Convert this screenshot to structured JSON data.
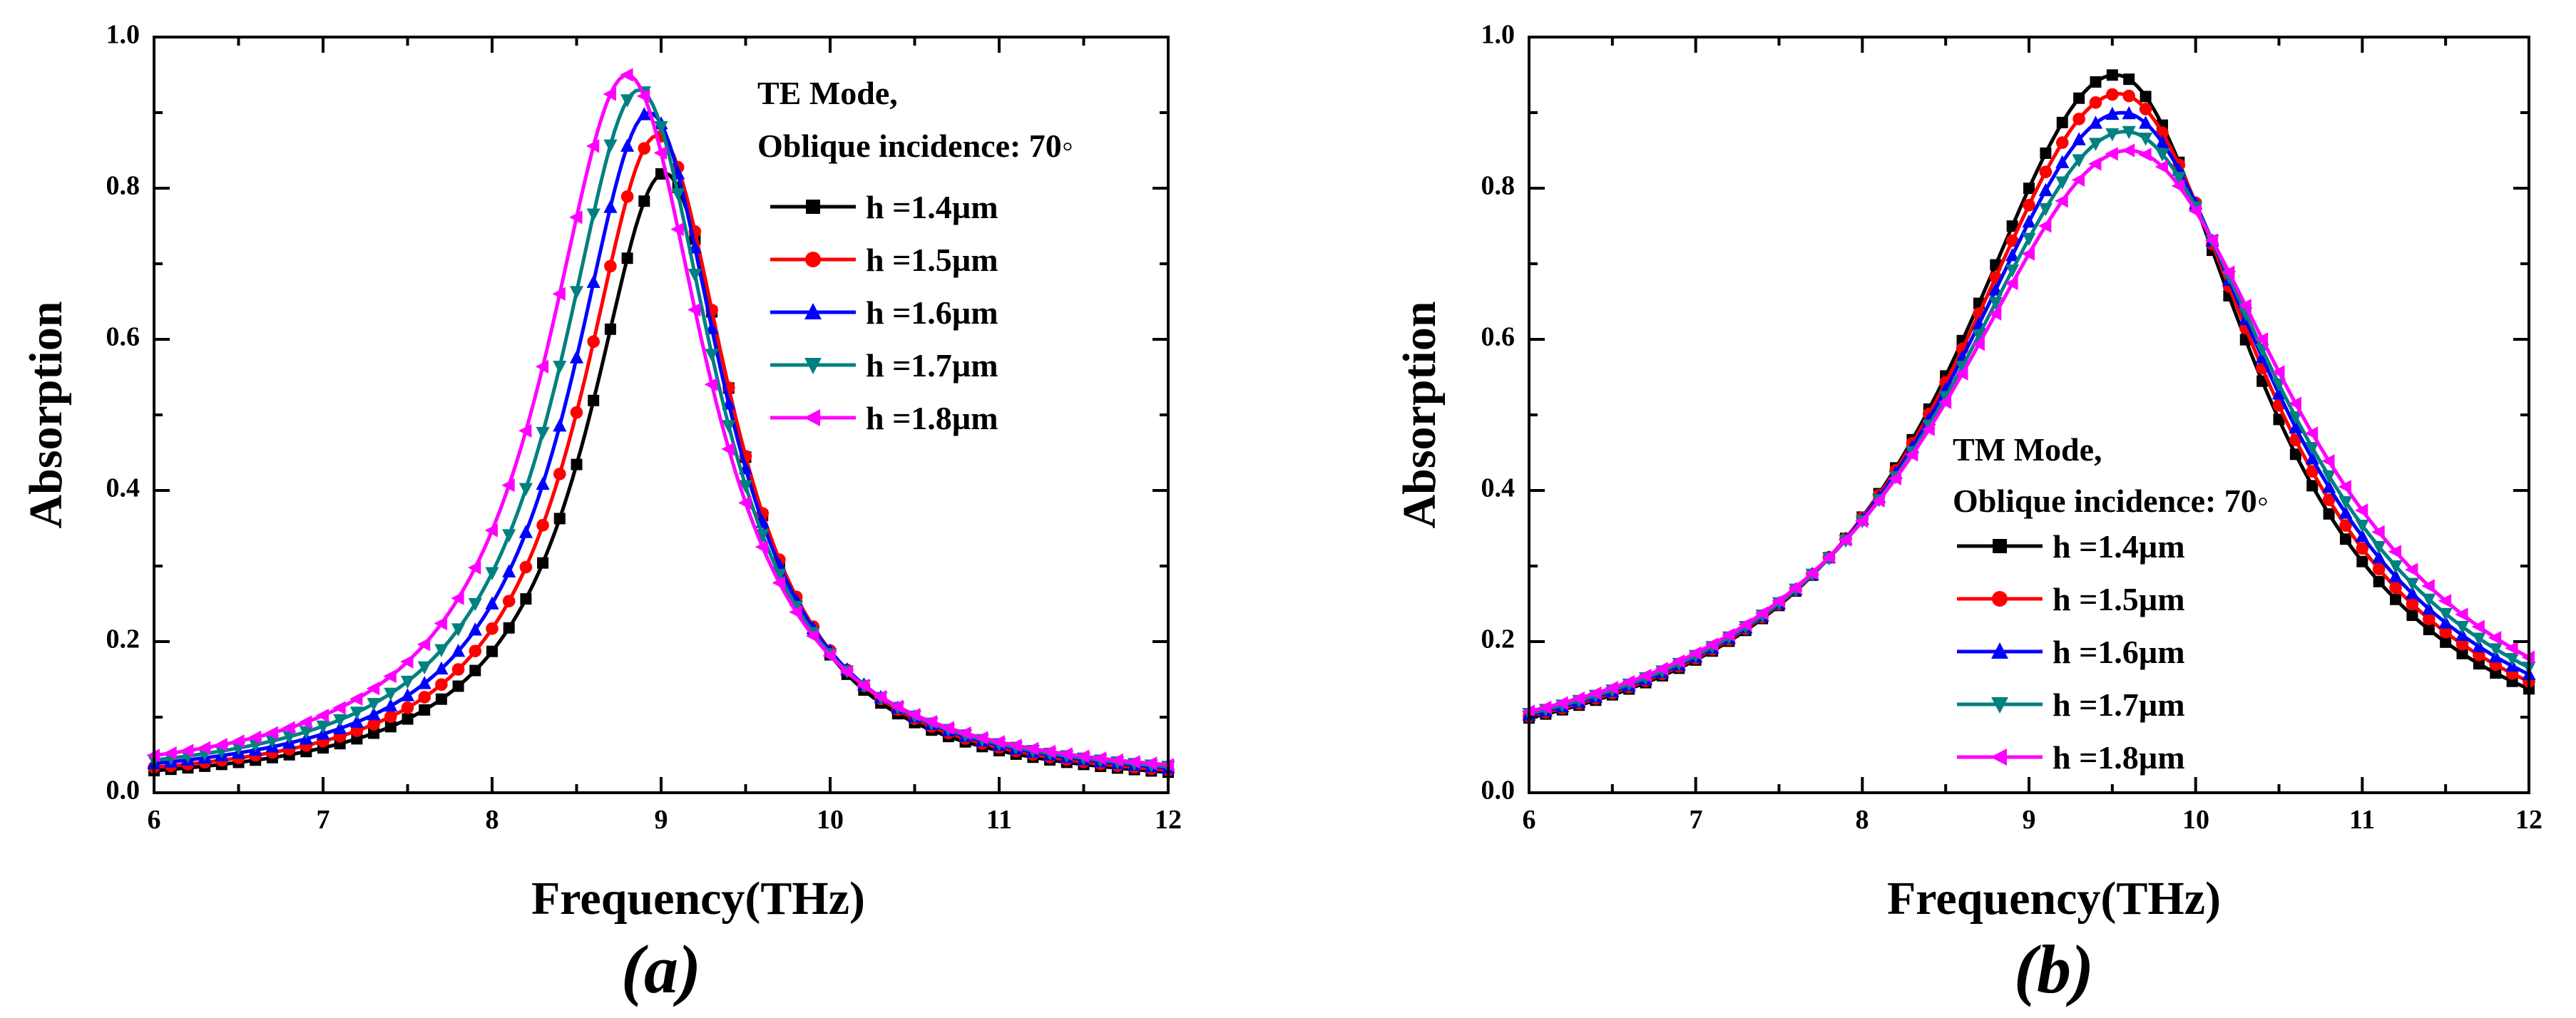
{
  "chart_data": [
    {
      "type": "line",
      "panel_label": "(a)",
      "xlabel": "Frequency(THz)",
      "ylabel": "Absorption",
      "xlim": [
        6,
        12
      ],
      "ylim": [
        0,
        1.0
      ],
      "xticks": [
        "6",
        "7",
        "8",
        "9",
        "10",
        "11",
        "12"
      ],
      "yticks": [
        "0.0",
        "0.2",
        "0.4",
        "0.6",
        "0.8",
        "1.0"
      ],
      "legend_title": [
        "TE Mode,",
        "Oblique incidence: 70◦"
      ],
      "legend_position": "top-right",
      "series": [
        {
          "name": "h =1.4µm",
          "color": "#000000",
          "marker": "square",
          "peak_x": 9.02,
          "peak_y": 0.82,
          "left_width": 0.55,
          "right_width": 0.52,
          "base": 0.003
        },
        {
          "name": "h =1.5µm",
          "color": "#ff0000",
          "marker": "circle",
          "peak_x": 8.98,
          "peak_y": 0.87,
          "left_width": 0.56,
          "right_width": 0.53,
          "base": 0.004
        },
        {
          "name": "h =1.6µm",
          "color": "#0000ff",
          "marker": "triangle-up",
          "peak_x": 8.93,
          "peak_y": 0.9,
          "left_width": 0.57,
          "right_width": 0.54,
          "base": 0.006
        },
        {
          "name": "h =1.7µm",
          "color": "#008080",
          "marker": "triangle-down",
          "peak_x": 8.87,
          "peak_y": 0.93,
          "left_width": 0.58,
          "right_width": 0.55,
          "base": 0.007
        },
        {
          "name": "h =1.8µm",
          "color": "#ff00ff",
          "marker": "triangle-left",
          "peak_x": 8.8,
          "peak_y": 0.95,
          "left_width": 0.6,
          "right_width": 0.57,
          "base": 0.008
        }
      ]
    },
    {
      "type": "line",
      "panel_label": "(b)",
      "xlabel": "Frequency(THz)",
      "ylabel": "Absorption",
      "xlim": [
        6,
        12
      ],
      "ylim": [
        0,
        1.0
      ],
      "xticks": [
        "6",
        "7",
        "8",
        "9",
        "10",
        "11",
        "12"
      ],
      "yticks": [
        "0.0",
        "0.2",
        "0.4",
        "0.6",
        "0.8",
        "1.0"
      ],
      "legend_title": [
        "TM Mode,",
        "Oblique incidence: 70◦"
      ],
      "legend_position": "center-left",
      "series": [
        {
          "name": "h =1.4µm",
          "color": "#000000",
          "marker": "square",
          "peak_x": 9.52,
          "peak_y": 0.95,
          "left_width": 1.2,
          "right_width": 1.02,
          "base": 0.0
        },
        {
          "name": "h =1.5µm",
          "color": "#ff0000",
          "marker": "circle",
          "peak_x": 9.54,
          "peak_y": 0.925,
          "left_width": 1.24,
          "right_width": 1.07,
          "base": 0.0
        },
        {
          "name": "h =1.6µm",
          "color": "#0000ff",
          "marker": "triangle-up",
          "peak_x": 9.56,
          "peak_y": 0.9,
          "left_width": 1.28,
          "right_width": 1.12,
          "base": 0.0
        },
        {
          "name": "h =1.7µm",
          "color": "#008080",
          "marker": "triangle-down",
          "peak_x": 9.58,
          "peak_y": 0.875,
          "left_width": 1.32,
          "right_width": 1.17,
          "base": 0.0
        },
        {
          "name": "h =1.8µm",
          "color": "#ff00ff",
          "marker": "triangle-left",
          "peak_x": 9.6,
          "peak_y": 0.85,
          "left_width": 1.37,
          "right_width": 1.24,
          "base": 0.0
        }
      ]
    }
  ]
}
